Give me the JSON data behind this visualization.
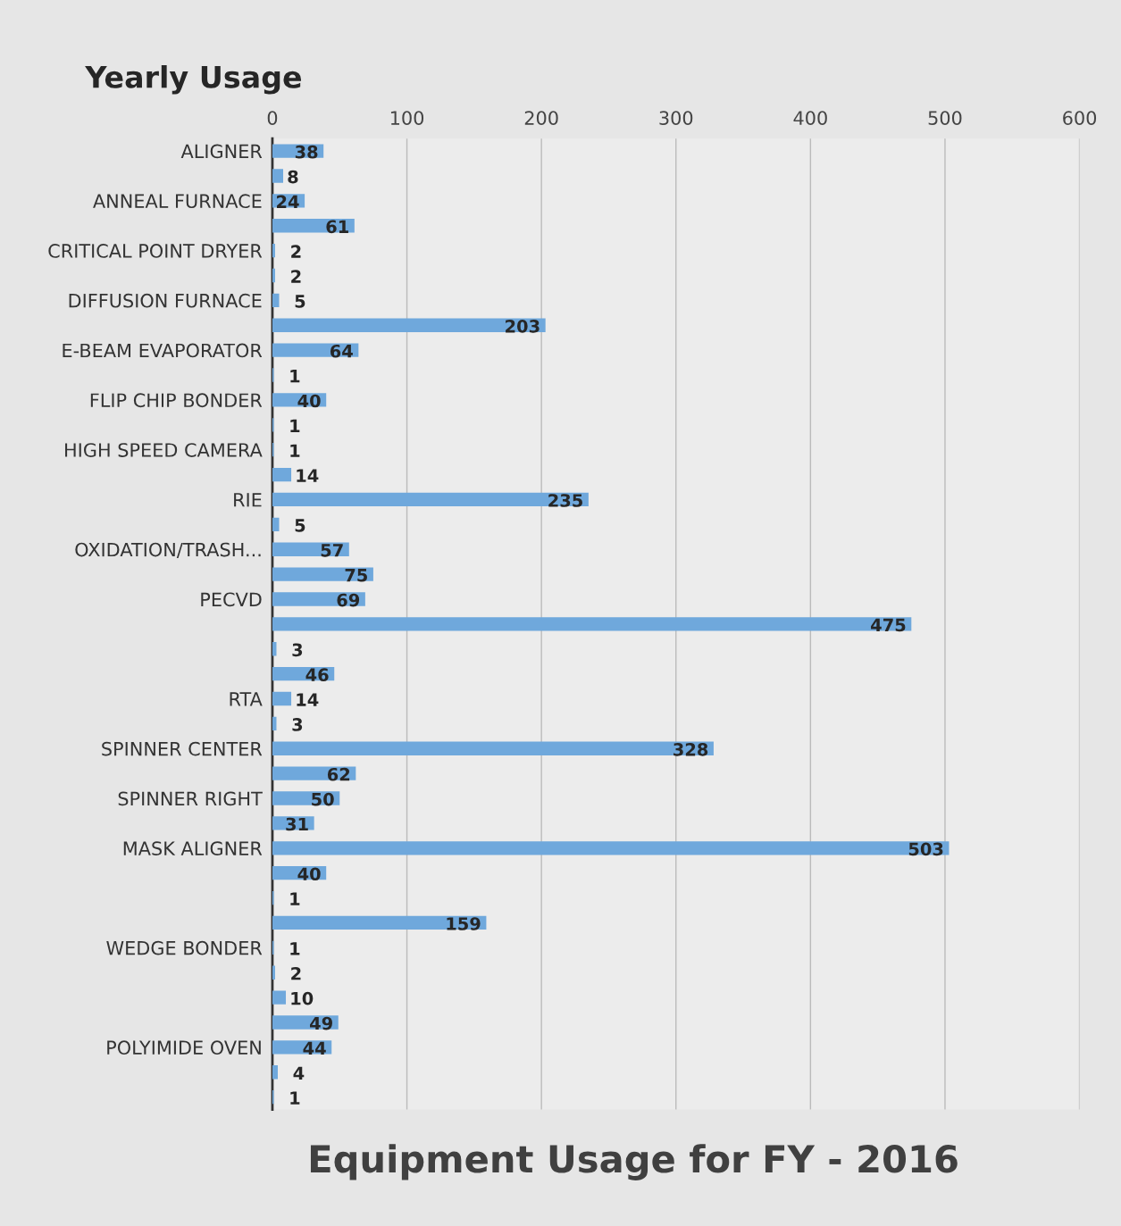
{
  "chart_data": {
    "type": "bar",
    "orientation": "horizontal",
    "title": "Equipment Usage for FY - 2016",
    "subtitle": "Yearly Usage",
    "categories": [
      "ALIGNER",
      null,
      "ANNEAL FURNACE",
      null,
      "CRITICAL POINT DRYER",
      null,
      "DIFFUSION FURNACE",
      null,
      "E-BEAM EVAPORATOR",
      null,
      "FLIP CHIP BONDER",
      null,
      "HIGH SPEED CAMERA",
      null,
      "RIE",
      null,
      "OXIDATION/TRASH...",
      null,
      "PECVD",
      null,
      null,
      null,
      "RTA",
      null,
      "SPINNER CENTER",
      null,
      "SPINNER RIGHT",
      null,
      "MASK ALIGNER",
      null,
      null,
      null,
      "WEDGE BONDER",
      null,
      null,
      null,
      "POLYIMIDE OVEN",
      null,
      null
    ],
    "values": [
      38,
      8,
      24,
      61,
      2,
      2,
      5,
      203,
      64,
      1,
      40,
      1,
      1,
      14,
      235,
      5,
      57,
      75,
      69,
      475,
      3,
      46,
      14,
      3,
      328,
      62,
      50,
      31,
      503,
      40,
      1,
      159,
      1,
      2,
      10,
      49,
      44,
      4,
      1
    ],
    "color": "#6fa8dc",
    "xlim": [
      0,
      600
    ],
    "xticks": [
      0,
      100,
      200,
      300,
      400,
      500,
      600
    ],
    "grid": "x",
    "data_labels": true,
    "legend": false
  }
}
